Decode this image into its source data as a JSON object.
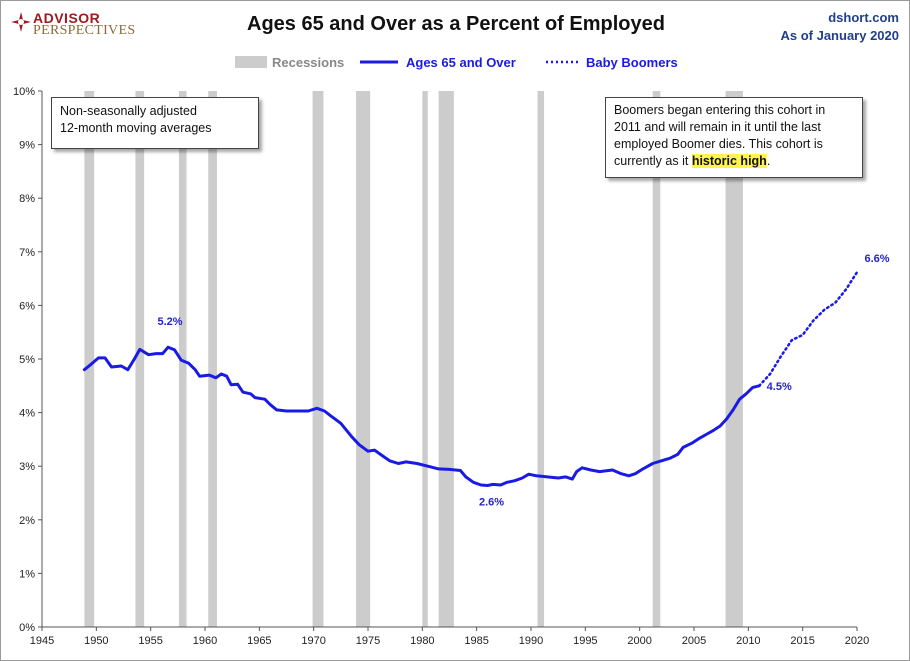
{
  "header": {
    "logo_line1": "ADVISOR",
    "logo_line2": "PERSPECTIVES",
    "title": "Ages 65 and Over as a Percent of Employed",
    "source_line1": "dshort.com",
    "source_line2": "As of January 2020"
  },
  "notes": {
    "left_line1": "Non-seasonally adjusted",
    "left_line2": "12-month moving averages",
    "right_line1": "Boomers began entering this cohort in",
    "right_line2": "2011  and will remain in it until the last",
    "right_line3": "employed Boomer dies. This cohort is",
    "right_line4_pre": "currently as it ",
    "right_line4_hl": "historic high",
    "right_line4_post": "."
  },
  "chart_data": {
    "type": "line",
    "title": "Ages 65 and Over as a Percent of Employed",
    "x_axis": {
      "min": 1945,
      "max": 2020,
      "ticks": [
        1945,
        1950,
        1955,
        1960,
        1965,
        1970,
        1975,
        1980,
        1985,
        1990,
        1995,
        2000,
        2005,
        2010,
        2015,
        2020
      ]
    },
    "y_axis": {
      "min": 0,
      "max": 10,
      "ticks": [
        0,
        1,
        2,
        3,
        4,
        5,
        6,
        7,
        8,
        9,
        10
      ],
      "tick_labels": [
        "0%",
        "1%",
        "2%",
        "3%",
        "4%",
        "5%",
        "6%",
        "7%",
        "8%",
        "9%",
        "10%"
      ]
    },
    "grid": false,
    "legend_position": "top-center",
    "legend": [
      {
        "label": "Recessions",
        "color": "#cccccc",
        "style": "band"
      },
      {
        "label": "Ages 65 and Over",
        "color": "#1a1ae6",
        "style": "solid"
      },
      {
        "label": "Baby Boomers",
        "color": "#1a1ae6",
        "style": "dotted"
      }
    ],
    "recessions": [
      [
        1948.9,
        1949.8
      ],
      [
        1953.6,
        1954.4
      ],
      [
        1957.6,
        1958.3
      ],
      [
        1960.3,
        1961.1
      ],
      [
        1969.9,
        1970.9
      ],
      [
        1973.9,
        1975.2
      ],
      [
        1980.0,
        1980.5
      ],
      [
        1981.5,
        1982.9
      ],
      [
        1990.6,
        1991.2
      ],
      [
        2001.2,
        2001.9
      ],
      [
        2007.9,
        2009.5
      ]
    ],
    "series": [
      {
        "name": "Ages 65 and Over",
        "color": "#1a1ae6",
        "style": "solid",
        "points": [
          [
            1948.9,
            4.8
          ],
          [
            1949.5,
            4.9
          ],
          [
            1950.2,
            5.02
          ],
          [
            1950.8,
            5.02
          ],
          [
            1951.4,
            4.85
          ],
          [
            1952.3,
            4.87
          ],
          [
            1952.9,
            4.8
          ],
          [
            1953.5,
            5.0
          ],
          [
            1954.0,
            5.18
          ],
          [
            1954.8,
            5.08
          ],
          [
            1955.5,
            5.1
          ],
          [
            1956.1,
            5.1
          ],
          [
            1956.6,
            5.22
          ],
          [
            1957.2,
            5.17
          ],
          [
            1957.8,
            4.98
          ],
          [
            1958.5,
            4.92
          ],
          [
            1959.1,
            4.8
          ],
          [
            1959.5,
            4.68
          ],
          [
            1960.4,
            4.7
          ],
          [
            1961.0,
            4.65
          ],
          [
            1961.5,
            4.72
          ],
          [
            1962.0,
            4.68
          ],
          [
            1962.4,
            4.52
          ],
          [
            1963.0,
            4.53
          ],
          [
            1963.5,
            4.38
          ],
          [
            1964.2,
            4.35
          ],
          [
            1964.6,
            4.28
          ],
          [
            1965.5,
            4.25
          ],
          [
            1966.0,
            4.15
          ],
          [
            1966.6,
            4.05
          ],
          [
            1967.5,
            4.03
          ],
          [
            1968.5,
            4.03
          ],
          [
            1969.5,
            4.03
          ],
          [
            1970.3,
            4.08
          ],
          [
            1971.0,
            4.03
          ],
          [
            1971.5,
            3.95
          ],
          [
            1972.5,
            3.8
          ],
          [
            1973.5,
            3.55
          ],
          [
            1974.2,
            3.4
          ],
          [
            1975.0,
            3.28
          ],
          [
            1975.6,
            3.3
          ],
          [
            1976.3,
            3.2
          ],
          [
            1977.0,
            3.1
          ],
          [
            1977.8,
            3.05
          ],
          [
            1978.5,
            3.08
          ],
          [
            1979.5,
            3.05
          ],
          [
            1980.5,
            3.0
          ],
          [
            1981.5,
            2.95
          ],
          [
            1982.5,
            2.94
          ],
          [
            1983.5,
            2.92
          ],
          [
            1984.0,
            2.8
          ],
          [
            1984.7,
            2.7
          ],
          [
            1985.4,
            2.65
          ],
          [
            1986.0,
            2.64
          ],
          [
            1986.5,
            2.66
          ],
          [
            1987.2,
            2.65
          ],
          [
            1987.8,
            2.7
          ],
          [
            1988.5,
            2.73
          ],
          [
            1989.2,
            2.78
          ],
          [
            1989.8,
            2.85
          ],
          [
            1990.5,
            2.82
          ],
          [
            1991.5,
            2.8
          ],
          [
            1992.5,
            2.78
          ],
          [
            1993.2,
            2.8
          ],
          [
            1993.8,
            2.76
          ],
          [
            1994.2,
            2.9
          ],
          [
            1994.7,
            2.97
          ],
          [
            1995.5,
            2.93
          ],
          [
            1996.3,
            2.9
          ],
          [
            1997.5,
            2.93
          ],
          [
            1998.3,
            2.86
          ],
          [
            1999.0,
            2.82
          ],
          [
            1999.6,
            2.86
          ],
          [
            2000.3,
            2.95
          ],
          [
            2001.2,
            3.05
          ],
          [
            2002.0,
            3.1
          ],
          [
            2002.8,
            3.15
          ],
          [
            2003.5,
            3.22
          ],
          [
            2004.0,
            3.35
          ],
          [
            2004.8,
            3.43
          ],
          [
            2005.5,
            3.52
          ],
          [
            2006.2,
            3.6
          ],
          [
            2006.8,
            3.67
          ],
          [
            2007.4,
            3.75
          ],
          [
            2008.0,
            3.88
          ],
          [
            2008.6,
            4.05
          ],
          [
            2009.2,
            4.25
          ],
          [
            2009.8,
            4.35
          ],
          [
            2010.4,
            4.47
          ],
          [
            2011.0,
            4.5
          ]
        ]
      },
      {
        "name": "Baby Boomers",
        "color": "#1a1ae6",
        "style": "dotted",
        "points": [
          [
            2011.0,
            4.5
          ],
          [
            2012.0,
            4.72
          ],
          [
            2013.0,
            5.05
          ],
          [
            2014.0,
            5.35
          ],
          [
            2015.0,
            5.45
          ],
          [
            2016.0,
            5.72
          ],
          [
            2017.0,
            5.92
          ],
          [
            2018.0,
            6.05
          ],
          [
            2019.0,
            6.3
          ],
          [
            2020.0,
            6.62
          ]
        ]
      }
    ],
    "annotations": [
      {
        "text": "5.2%",
        "x": 1956.6,
        "y": 5.22
      },
      {
        "text": "2.6%",
        "x": 1986.0,
        "y": 2.64
      },
      {
        "text": "4.5%",
        "x": 2011.0,
        "y": 4.5
      },
      {
        "text": "6.6%",
        "x": 2020.0,
        "y": 6.62
      }
    ]
  }
}
